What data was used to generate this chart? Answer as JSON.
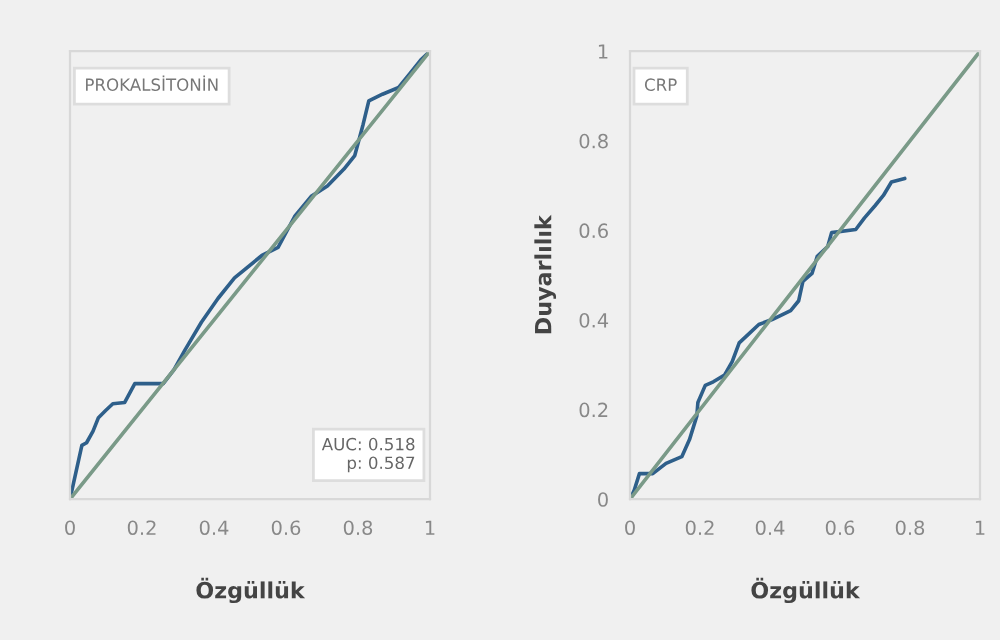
{
  "chart_data": [
    {
      "type": "line",
      "title": "PROKALSİTONİN",
      "xlabel": "Özgüllük",
      "annotations": [
        "AUC: 0.518\np: 0.587"
      ],
      "xlim": [
        0,
        1
      ],
      "ylim": [
        0,
        1
      ],
      "xticks": [
        0,
        0.2,
        0.4,
        0.6,
        0.8,
        1
      ],
      "yticks": [
        0,
        0.2,
        0.4,
        0.6,
        0.8,
        1
      ],
      "tick_labels": "x",
      "grid": false,
      "legend": false,
      "series": [
        {
          "color": "#2e5f8a",
          "x": [
            0,
            0.033,
            0.046,
            0.064,
            0.079,
            0.099,
            0.119,
            0.152,
            0.18,
            0.259,
            0.289,
            0.32,
            0.365,
            0.411,
            0.457,
            0.533,
            0.578,
            0.624,
            0.67,
            0.715,
            0.761,
            0.791,
            0.814,
            0.83,
            0.868,
            0.913,
            0.944,
            0.974,
            1
          ],
          "values": [
            0,
            0.12,
            0.126,
            0.152,
            0.182,
            0.198,
            0.213,
            0.216,
            0.258,
            0.258,
            0.289,
            0.334,
            0.395,
            0.448,
            0.494,
            0.544,
            0.562,
            0.631,
            0.676,
            0.699,
            0.737,
            0.767,
            0.836,
            0.889,
            0.904,
            0.919,
            0.95,
            0.98,
            1
          ]
        },
        {
          "color": "#7a9a88",
          "x": [
            0,
            1
          ],
          "values": [
            0,
            1
          ]
        }
      ]
    },
    {
      "type": "line",
      "title": "CRP",
      "xlabel": "Özgüllük",
      "ylabel": "Duyarlılık",
      "xlim": [
        0,
        1
      ],
      "ylim": [
        0,
        1
      ],
      "xticks": [
        0,
        0.2,
        0.4,
        0.6,
        0.8,
        1
      ],
      "yticks": [
        0,
        0.2,
        0.4,
        0.6,
        0.8,
        1
      ],
      "grid": false,
      "legend": false,
      "series": [
        {
          "color": "#2e5f8a",
          "x": [
            0,
            0.012,
            0.027,
            0.065,
            0.103,
            0.148,
            0.17,
            0.191,
            0.194,
            0.215,
            0.238,
            0.27,
            0.292,
            0.312,
            0.338,
            0.368,
            0.406,
            0.459,
            0.482,
            0.494,
            0.52,
            0.535,
            0.565,
            0.576,
            0.645,
            0.67,
            0.7,
            0.724,
            0.747,
            0.785
          ],
          "values": [
            0,
            0.02,
            0.057,
            0.057,
            0.08,
            0.095,
            0.133,
            0.186,
            0.216,
            0.254,
            0.262,
            0.277,
            0.307,
            0.349,
            0.368,
            0.39,
            0.401,
            0.421,
            0.443,
            0.486,
            0.504,
            0.542,
            0.564,
            0.595,
            0.602,
            0.628,
            0.655,
            0.678,
            0.708,
            0.716
          ]
        },
        {
          "color": "#7a9a88",
          "x": [
            0,
            1
          ],
          "values": [
            0,
            1
          ]
        }
      ]
    }
  ]
}
